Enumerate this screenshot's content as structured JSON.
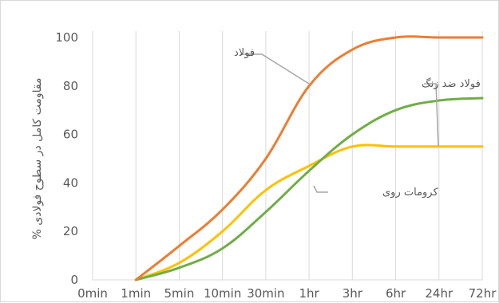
{
  "chart_data": {
    "type": "line",
    "ylabel": "مقاومت کامل در سطوح فولادی %",
    "xlabel": "",
    "title": "",
    "categories": [
      "0min",
      "1min",
      "5min",
      "10min",
      "30min",
      "1hr",
      "3hr",
      "6hr",
      "24hr",
      "72hr"
    ],
    "ylim": [
      0,
      100
    ],
    "yticks": [
      0,
      20,
      40,
      60,
      80,
      100
    ],
    "grid": "vertical",
    "legend": "none",
    "series": [
      {
        "name": "فولاد",
        "color": "#ed7d31",
        "values": [
          null,
          0,
          14,
          29,
          50,
          80,
          95,
          100,
          100,
          100
        ]
      },
      {
        "name": "فولاد ضد زنگ",
        "color": "#70ad47",
        "values": [
          null,
          0,
          5,
          13,
          28,
          45,
          60,
          70,
          74,
          75
        ]
      },
      {
        "name": "کرومات روی",
        "color": "#ffc000",
        "values": [
          null,
          0,
          7,
          20,
          37,
          47,
          55,
          55,
          55,
          55
        ]
      }
    ]
  }
}
